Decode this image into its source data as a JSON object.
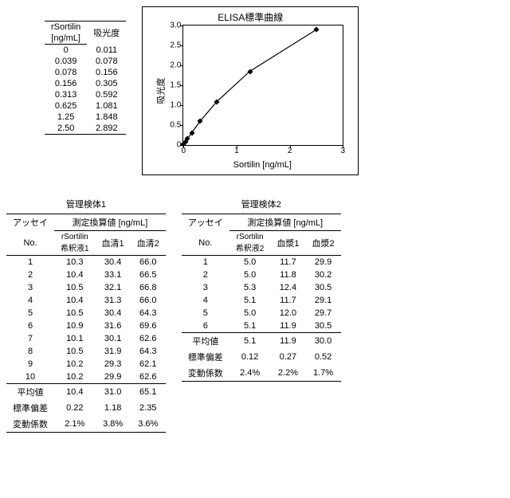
{
  "standard_table": {
    "col1_line1": "rSortilin",
    "col1_line2": "[ng/mL]",
    "col2": "吸光度",
    "rows": [
      [
        "0",
        "0.011"
      ],
      [
        "0.039",
        "0.078"
      ],
      [
        "0.078",
        "0.156"
      ],
      [
        "0.156",
        "0.305"
      ],
      [
        "0.313",
        "0.592"
      ],
      [
        "0.625",
        "1.081"
      ],
      [
        "1.25",
        "1.848"
      ],
      [
        "2.50",
        "2.892"
      ]
    ]
  },
  "chart": {
    "title": "ELISA標準曲線",
    "xlabel": "Sortilin [ng/mL]",
    "ylabel": "吸光度",
    "xlim": [
      0,
      3
    ],
    "ylim": [
      0,
      3.0
    ],
    "xticks": [
      0,
      1,
      2,
      3
    ],
    "yticks": [
      0,
      0.5,
      1.0,
      1.5,
      2.0,
      2.5,
      3.0
    ],
    "ytick_labels": [
      "0",
      "0.5",
      "1.0",
      "1.5",
      "2.0",
      "2.5",
      "3.0"
    ],
    "points_x": [
      0,
      0.039,
      0.078,
      0.156,
      0.313,
      0.625,
      1.25,
      2.5
    ],
    "points_y": [
      0.011,
      0.078,
      0.156,
      0.305,
      0.592,
      1.081,
      1.848,
      2.892
    ],
    "line_color": "#000000",
    "marker_color": "#000000",
    "background_color": "#ffffff"
  },
  "panel1": {
    "title": "管理検体1",
    "assay": "アッセイ",
    "assay_no": "No.",
    "group_header": "測定換算値 [ng/mL]",
    "sub1": "rSortilin",
    "sub1b": "希釈液1",
    "sub2": "血清1",
    "sub3": "血清2",
    "rows": [
      [
        "1",
        "10.3",
        "30.4",
        "66.0"
      ],
      [
        "2",
        "10.4",
        "33.1",
        "66.5"
      ],
      [
        "3",
        "10.5",
        "32.1",
        "66.8"
      ],
      [
        "4",
        "10.4",
        "31.3",
        "66.0"
      ],
      [
        "5",
        "10.5",
        "30.4",
        "64.3"
      ],
      [
        "6",
        "10.9",
        "31.6",
        "69.6"
      ],
      [
        "7",
        "10.1",
        "30.1",
        "62.6"
      ],
      [
        "8",
        "10.5",
        "31.9",
        "64.3"
      ],
      [
        "9",
        "10.2",
        "29.3",
        "62.1"
      ],
      [
        "10",
        "10.2",
        "29.9",
        "62.6"
      ]
    ],
    "mean_label": "平均値",
    "mean": [
      "10.4",
      "31.0",
      "65.1"
    ],
    "sd_label": "標準偏差",
    "sd": [
      "0.22",
      "1.18",
      "2.35"
    ],
    "cv_label": "変動係数",
    "cv": [
      "2.1%",
      "3.8%",
      "3.6%"
    ]
  },
  "panel2": {
    "title": "管理検体2",
    "assay": "アッセイ",
    "assay_no": "No.",
    "group_header": "測定換算値 [ng/mL]",
    "sub1": "rSortilin",
    "sub1b": "希釈液2",
    "sub2": "血漿1",
    "sub3": "血漿2",
    "rows": [
      [
        "1",
        "5.0",
        "11.7",
        "29.9"
      ],
      [
        "2",
        "5.0",
        "11.8",
        "30.2"
      ],
      [
        "3",
        "5.3",
        "12.4",
        "30.5"
      ],
      [
        "4",
        "5.1",
        "11.7",
        "29.1"
      ],
      [
        "5",
        "5.0",
        "12.0",
        "29.7"
      ],
      [
        "6",
        "5.1",
        "11.9",
        "30.5"
      ]
    ],
    "mean_label": "平均値",
    "mean": [
      "5.1",
      "11.9",
      "30.0"
    ],
    "sd_label": "標準偏差",
    "sd": [
      "0.12",
      "0.27",
      "0.52"
    ],
    "cv_label": "変動係数",
    "cv": [
      "2.4%",
      "2.2%",
      "1.7%"
    ]
  }
}
